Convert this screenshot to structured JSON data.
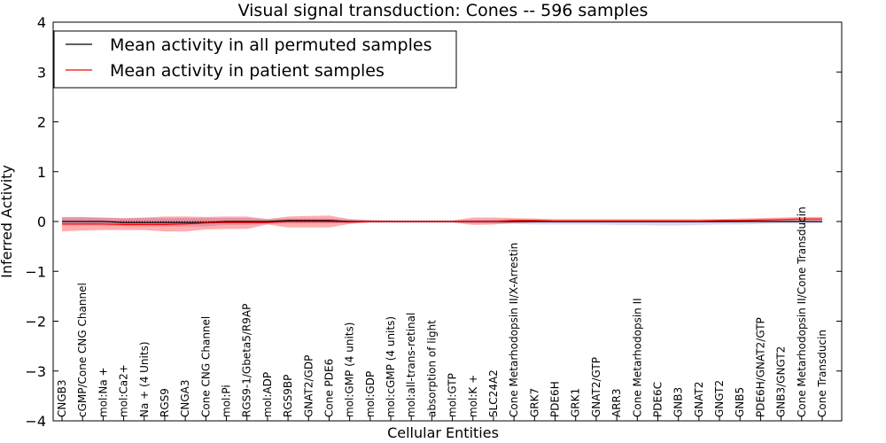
{
  "chart_data": {
    "type": "line",
    "title": "Visual signal transduction: Cones -- 596 samples",
    "xlabel": "Cellular Entities",
    "ylabel": "Inferred Activity",
    "ylim": [
      -4,
      4
    ],
    "yticks": [
      4,
      3,
      2,
      1,
      0,
      -1,
      -2,
      -3,
      -4
    ],
    "ytick_labels": [
      "4",
      "3",
      "2",
      "1",
      "0",
      "−1",
      "−2",
      "−3",
      "−4"
    ],
    "legend_position": "top-left",
    "categories": [
      "CNGB3",
      "cGMP/Cone CNG Channel",
      "mol:Na +",
      "mol:Ca2+",
      "Na + (4 Units)",
      "RGS9",
      "CNGA3",
      "Cone CNG Channel",
      "mol:Pi",
      "RGS9-1/Gbeta5/R9AP",
      "mol:ADP",
      "RGS9BP",
      "GNAT2/GDP",
      "Cone PDE6",
      "mol:GMP (4 units)",
      "mol:GDP",
      "mol:cGMP (4 units)",
      "mol:all-trans-retinal",
      "absorption of light",
      "mol:GTP",
      "mol:K +",
      "SLC24A2",
      "Cone Metarhodopsin II/X-Arrestin",
      "GRK7",
      "PDE6H",
      "GRK1",
      "GNAT2/GTP",
      "ARR3",
      "Cone Metarhodopsin II",
      "PDE6C",
      "GNB3",
      "GNAT2",
      "GNGT2",
      "GNB5",
      "PDE6H/GNAT2/GTP",
      "GNB3/GNGT2",
      "Cone Metarhodopsin II/Cone Transducin",
      "Cone Transducin"
    ],
    "series": [
      {
        "name": "Mean activity in all permuted samples",
        "color": "#000000",
        "values": [
          0.0,
          0.0,
          0.0,
          -0.02,
          -0.02,
          -0.02,
          -0.02,
          -0.02,
          0.0,
          0.0,
          0.0,
          0.02,
          0.02,
          0.02,
          0.0,
          0.0,
          0.0,
          0.0,
          0.0,
          0.0,
          0.0,
          0.0,
          0.0,
          0.0,
          0.0,
          0.0,
          0.0,
          0.0,
          0.0,
          0.0,
          0.0,
          0.0,
          0.0,
          0.0,
          0.0,
          0.0,
          0.0,
          0.0
        ],
        "band_upper": [
          0.08,
          0.08,
          0.07,
          0.06,
          0.07,
          0.07,
          0.07,
          0.07,
          0.07,
          0.07,
          0.05,
          0.06,
          0.06,
          0.06,
          0.04,
          0.02,
          0.02,
          0.02,
          0.02,
          0.02,
          0.03,
          0.04,
          0.04,
          0.03,
          0.02,
          0.02,
          0.02,
          0.02,
          0.02,
          0.02,
          0.02,
          0.02,
          0.02,
          0.02,
          0.02,
          0.02,
          0.02,
          0.02
        ],
        "band_lower": [
          -0.08,
          -0.08,
          -0.08,
          -0.09,
          -0.1,
          -0.1,
          -0.1,
          -0.1,
          -0.07,
          -0.07,
          -0.05,
          -0.04,
          -0.04,
          -0.04,
          -0.03,
          -0.02,
          -0.02,
          -0.02,
          -0.02,
          -0.02,
          -0.04,
          -0.04,
          -0.05,
          -0.06,
          -0.06,
          -0.06,
          -0.06,
          -0.07,
          -0.07,
          -0.08,
          -0.08,
          -0.07,
          -0.06,
          -0.06,
          -0.05,
          -0.04,
          -0.04,
          -0.04
        ]
      },
      {
        "name": "Mean activity in patient samples",
        "color": "#ff0000",
        "values": [
          -0.05,
          -0.05,
          -0.05,
          -0.06,
          -0.06,
          -0.06,
          -0.05,
          -0.03,
          -0.02,
          -0.02,
          -0.02,
          0.0,
          0.0,
          0.0,
          -0.01,
          0.0,
          0.0,
          0.0,
          0.0,
          0.0,
          0.0,
          0.0,
          0.02,
          0.02,
          0.01,
          0.01,
          0.01,
          0.01,
          0.01,
          0.01,
          0.01,
          0.01,
          0.02,
          0.02,
          0.03,
          0.04,
          0.05,
          0.05
        ],
        "band_upper": [
          0.09,
          0.09,
          0.08,
          0.07,
          0.08,
          0.1,
          0.1,
          0.09,
          0.1,
          0.1,
          0.05,
          0.1,
          0.11,
          0.12,
          0.05,
          0.03,
          0.02,
          0.02,
          0.02,
          0.02,
          0.08,
          0.08,
          0.07,
          0.06,
          0.05,
          0.05,
          0.05,
          0.05,
          0.05,
          0.05,
          0.05,
          0.05,
          0.05,
          0.06,
          0.07,
          0.08,
          0.09,
          0.09
        ],
        "band_lower": [
          -0.2,
          -0.18,
          -0.17,
          -0.17,
          -0.17,
          -0.2,
          -0.2,
          -0.16,
          -0.15,
          -0.15,
          -0.06,
          -0.12,
          -0.12,
          -0.12,
          -0.05,
          -0.02,
          -0.02,
          -0.02,
          -0.02,
          -0.02,
          -0.07,
          -0.06,
          -0.03,
          -0.02,
          -0.02,
          -0.02,
          -0.02,
          -0.02,
          -0.02,
          -0.02,
          -0.02,
          -0.02,
          -0.02,
          -0.01,
          0.0,
          0.0,
          0.01,
          0.02
        ]
      }
    ]
  }
}
